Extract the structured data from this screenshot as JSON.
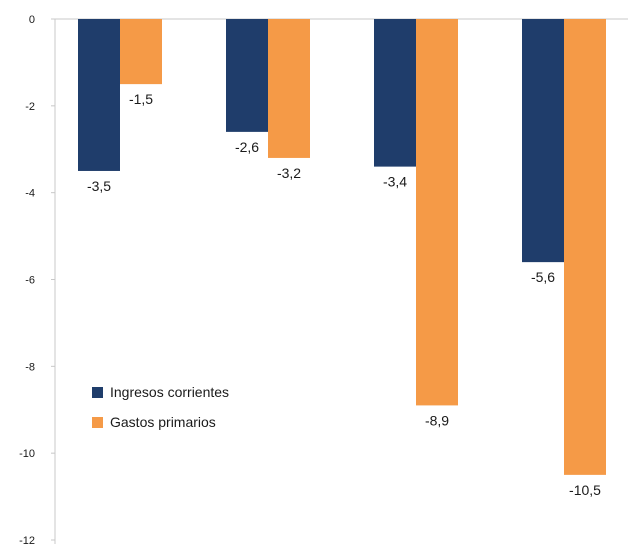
{
  "chart_data": {
    "type": "bar",
    "categories": [
      "",
      "",
      "",
      ""
    ],
    "series": [
      {
        "name": "Ingresos corrientes",
        "color": "#1f3d6b",
        "values": [
          -3.5,
          -2.6,
          -3.4,
          -5.6
        ],
        "labels": [
          "-3,5",
          "-2,6",
          "-3,4",
          "-5,6"
        ]
      },
      {
        "name": "Gastos primarios",
        "color": "#f59a47",
        "values": [
          -1.5,
          -3.2,
          -8.9,
          -10.5
        ],
        "labels": [
          "-1,5",
          "-3,2",
          "-8,9",
          "-10,5"
        ]
      }
    ],
    "ylim": [
      -12,
      0
    ],
    "yticks": [
      0,
      -2,
      -4,
      -6,
      -8,
      -10,
      -12
    ],
    "ytick_labels": [
      "0",
      "-2",
      "-4",
      "-6",
      "-8",
      "-10",
      "-12"
    ],
    "grid": false,
    "legend": {
      "position": "lower-left inside plot",
      "items": [
        "Ingresos corrientes",
        "Gastos primarios"
      ]
    },
    "title": "",
    "xlabel": "",
    "ylabel": "",
    "axis_color": "#c8c8c8"
  }
}
